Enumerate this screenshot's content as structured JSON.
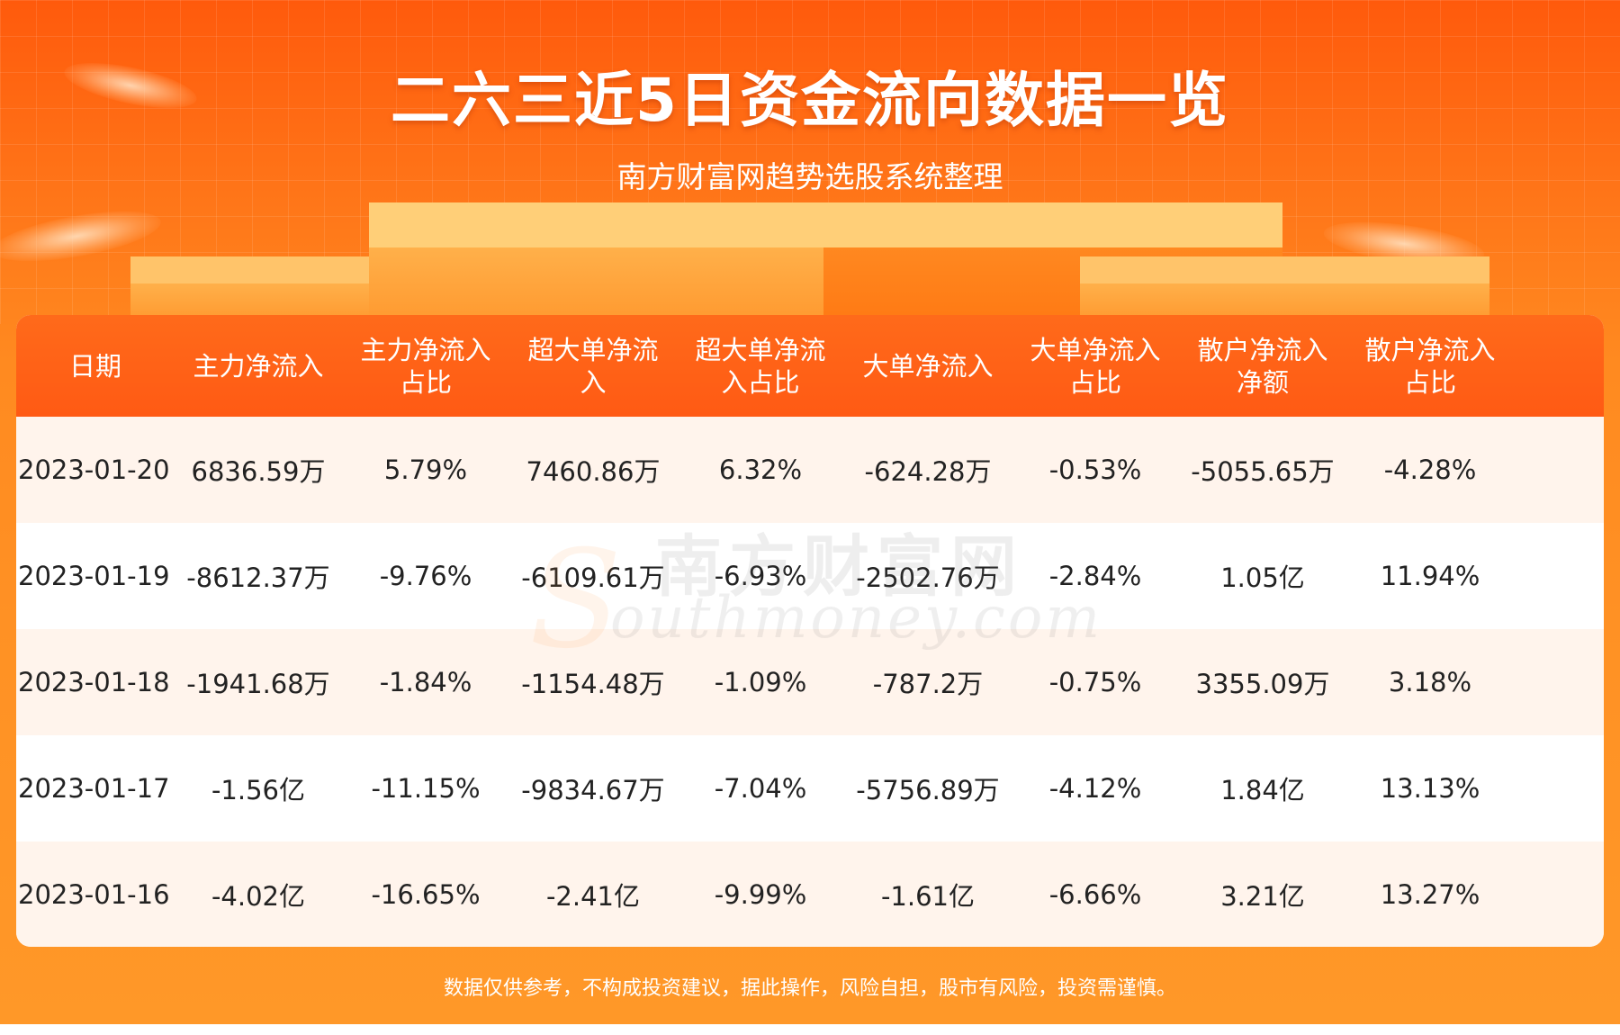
{
  "header": {
    "title": "二六三近5日资金流向数据一览",
    "subtitle": "南方财富网趋势选股系统整理"
  },
  "table": {
    "columns": [
      "日期",
      "主力净流入",
      "主力净流入\n占比",
      "超大单净流\n入",
      "超大单净流\n入占比",
      "大单净流入",
      "大单净流入\n占比",
      "散户净流入\n净额",
      "散户净流入\n占比"
    ],
    "rows": [
      [
        "2023-01-20",
        "6836.59万",
        "5.79%",
        "7460.86万",
        "6.32%",
        "-624.28万",
        "-0.53%",
        "-5055.65万",
        "-4.28%"
      ],
      [
        "2023-01-19",
        "-8612.37万",
        "-9.76%",
        "-6109.61万",
        "-6.93%",
        "-2502.76万",
        "-2.84%",
        "1.05亿",
        "11.94%"
      ],
      [
        "2023-01-18",
        "-1941.68万",
        "-1.84%",
        "-1154.48万",
        "-1.09%",
        "-787.2万",
        "-0.75%",
        "3355.09万",
        "3.18%"
      ],
      [
        "2023-01-17",
        "-1.56亿",
        "-11.15%",
        "-9834.67万",
        "-7.04%",
        "-5756.89万",
        "-4.12%",
        "1.84亿",
        "13.13%"
      ],
      [
        "2023-01-16",
        "-4.02亿",
        "-16.65%",
        "-2.41亿",
        "-9.99%",
        "-1.61亿",
        "-6.66%",
        "3.21亿",
        "13.27%"
      ]
    ]
  },
  "watermark": {
    "cn": "南方财富网",
    "en": "outhmoney.com",
    "s": "S"
  },
  "footer": {
    "disclaimer": "数据仅供参考，不构成投资建议，据此操作，风险自担，股市有风险，投资需谨慎。"
  },
  "colors": {
    "header_orange": "#ff5a14",
    "row_tint": "#fff4ec",
    "text_dark": "#222222"
  }
}
